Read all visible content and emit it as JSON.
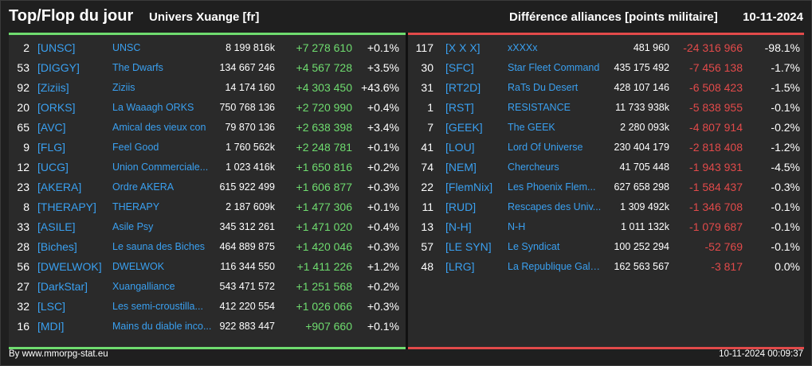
{
  "header": {
    "title": "Top/Flop du jour",
    "universe": "Univers Xuange [fr]",
    "diff_title": "Différence alliances [points militaire]",
    "date": "10-11-2024"
  },
  "top": [
    {
      "rank": "2",
      "tag": "[UNSC]",
      "name": "UNSC",
      "points": "8 199 816k",
      "delta": "+7 278 610",
      "pct": "+0.1%"
    },
    {
      "rank": "53",
      "tag": "[DIGGY]",
      "name": "The Dwarfs",
      "points": "134 667 246",
      "delta": "+4 567 728",
      "pct": "+3.5%"
    },
    {
      "rank": "92",
      "tag": "[Ziziis]",
      "name": "Ziziis",
      "points": "14 174 160",
      "delta": "+4 303 450",
      "pct": "+43.6%"
    },
    {
      "rank": "20",
      "tag": "[ORKS]",
      "name": "La Waaagh ORKS",
      "points": "750 768 136",
      "delta": "+2 720 990",
      "pct": "+0.4%"
    },
    {
      "rank": "65",
      "tag": "[AVC]",
      "name": "Amical des vieux con",
      "points": "79 870 136",
      "delta": "+2 638 398",
      "pct": "+3.4%"
    },
    {
      "rank": "9",
      "tag": "[FLG]",
      "name": "Feel Good",
      "points": "1 760 562k",
      "delta": "+2 248 781",
      "pct": "+0.1%"
    },
    {
      "rank": "12",
      "tag": "[UCG]",
      "name": "Union Commerciale...",
      "points": "1 023 416k",
      "delta": "+1 650 816",
      "pct": "+0.2%"
    },
    {
      "rank": "23",
      "tag": "[AKERA]",
      "name": "Ordre AKERA",
      "points": "615 922 499",
      "delta": "+1 606 877",
      "pct": "+0.3%"
    },
    {
      "rank": "8",
      "tag": "[THERAPY]",
      "name": "THERAPY",
      "points": "2 187 609k",
      "delta": "+1 477 306",
      "pct": "+0.1%"
    },
    {
      "rank": "33",
      "tag": "[ASILE]",
      "name": "Asile Psy",
      "points": "345 312 261",
      "delta": "+1 471 020",
      "pct": "+0.4%"
    },
    {
      "rank": "28",
      "tag": "[Biches]",
      "name": "Le sauna des Biches",
      "points": "464 889 875",
      "delta": "+1 420 046",
      "pct": "+0.3%"
    },
    {
      "rank": "56",
      "tag": "[DWELWOK]",
      "name": "DWELWOK",
      "points": "116 344 550",
      "delta": "+1 411 226",
      "pct": "+1.2%"
    },
    {
      "rank": "27",
      "tag": "[DarkStar]",
      "name": "Xuangalliance",
      "points": "543 471 572",
      "delta": "+1 251 568",
      "pct": "+0.2%"
    },
    {
      "rank": "32",
      "tag": "[LSC]",
      "name": "Les semi-croustilla...",
      "points": "412 220 554",
      "delta": "+1 026 066",
      "pct": "+0.3%"
    },
    {
      "rank": "16",
      "tag": "[MDI]",
      "name": "Mains du diable inco...",
      "points": "922 883 447",
      "delta": "+907 660",
      "pct": "+0.1%"
    }
  ],
  "flop": [
    {
      "rank": "117",
      "tag": "[X X X]",
      "name": "xXXXx",
      "points": "481 960",
      "delta": "-24 316 966",
      "pct": "-98.1%"
    },
    {
      "rank": "30",
      "tag": "[SFC]",
      "name": "Star Fleet Command",
      "points": "435 175 492",
      "delta": "-7 456 138",
      "pct": "-1.7%"
    },
    {
      "rank": "31",
      "tag": "[RT2D]",
      "name": "RaTs Du Desert",
      "points": "428 107 146",
      "delta": "-6 508 423",
      "pct": "-1.5%"
    },
    {
      "rank": "1",
      "tag": "[RST]",
      "name": "RESISTANCE",
      "points": "11 733 938k",
      "delta": "-5 838 955",
      "pct": "-0.1%"
    },
    {
      "rank": "7",
      "tag": "[GEEK]",
      "name": "The GEEK",
      "points": "2 280 093k",
      "delta": "-4 807 914",
      "pct": "-0.2%"
    },
    {
      "rank": "41",
      "tag": "[LOU]",
      "name": "Lord Of Universe",
      "points": "230 404 179",
      "delta": "-2 818 408",
      "pct": "-1.2%"
    },
    {
      "rank": "74",
      "tag": "[NEM]",
      "name": "Chercheurs",
      "points": "41 705 448",
      "delta": "-1 943 931",
      "pct": "-4.5%"
    },
    {
      "rank": "22",
      "tag": "[FlemNix]",
      "name": "Les Phoenix Flem...",
      "points": "627 658 298",
      "delta": "-1 584 437",
      "pct": "-0.3%"
    },
    {
      "rank": "11",
      "tag": "[RUD]",
      "name": "Rescapes des Univ...",
      "points": "1 309 492k",
      "delta": "-1 346 708",
      "pct": "-0.1%"
    },
    {
      "rank": "13",
      "tag": "[N-H]",
      "name": "N-H",
      "points": "1 011 132k",
      "delta": "-1 079 687",
      "pct": "-0.1%"
    },
    {
      "rank": "57",
      "tag": "[LE SYN]",
      "name": "Le Syndicat",
      "points": "100 252 294",
      "delta": "-52 769",
      "pct": "-0.1%"
    },
    {
      "rank": "48",
      "tag": "[LRG]",
      "name": "La Republique Gala...",
      "points": "162 563 567",
      "delta": "-3 817",
      "pct": "0.0%"
    }
  ],
  "footer": {
    "source": "By www.mmorpg-stat.eu",
    "timestamp": "10-11-2024 00:09:37"
  },
  "colors": {
    "gain": "#6fdc6f",
    "loss": "#e24a4a",
    "link": "#3aa0f0"
  }
}
